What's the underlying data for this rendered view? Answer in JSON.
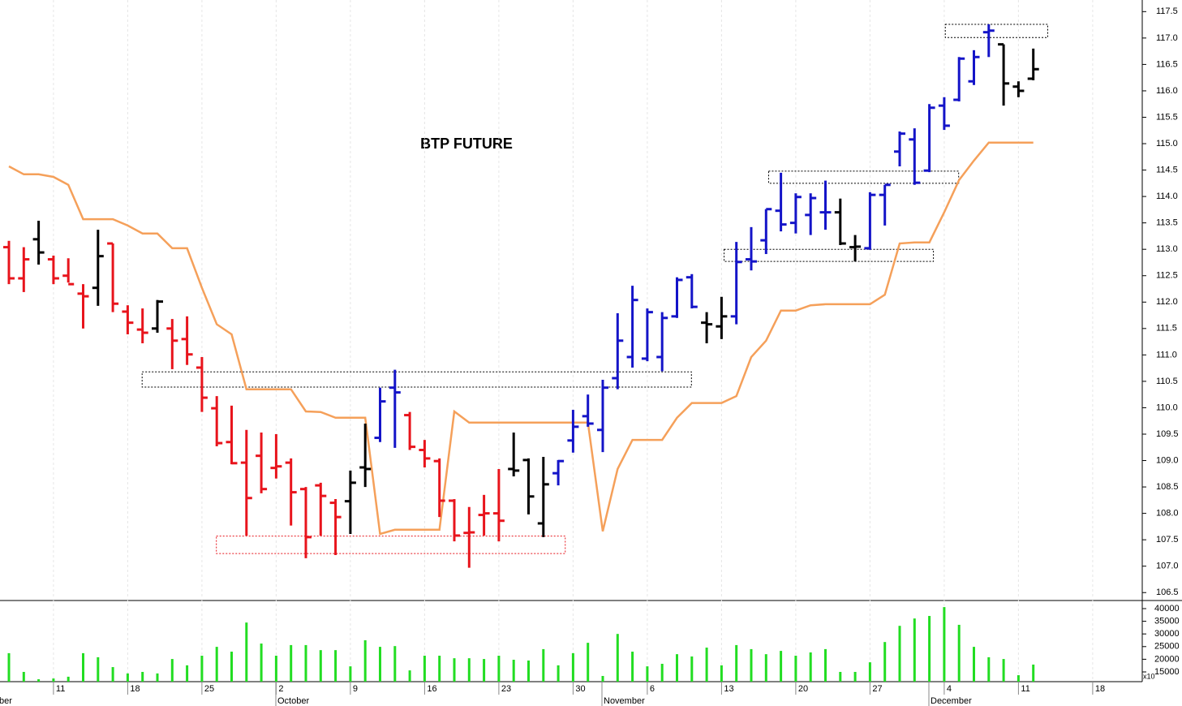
{
  "chart_data": {
    "type": "ohlc",
    "title": "BTP FUTURE",
    "categories": [
      "11",
      "18",
      "25",
      "2",
      "9",
      "16",
      "23",
      "30",
      "6",
      "13",
      "20",
      "27",
      "4",
      "11",
      "18"
    ],
    "months": [
      "ber",
      "October",
      "November",
      "December"
    ],
    "ylim": [
      106.35,
      117.72
    ],
    "yticks": [
      {
        "value": 106.5,
        "label": "106.5"
      },
      {
        "value": 107,
        "label": "107.0"
      },
      107.5,
      {
        "value": 108,
        "label": "108.0"
      },
      108.5,
      {
        "value": 109,
        "label": "109.0"
      },
      109.5,
      {
        "value": 110,
        "label": "110.0"
      },
      110.5,
      {
        "value": 111,
        "label": "111.0"
      },
      111.5,
      {
        "value": 112,
        "label": "112.0"
      },
      112.5,
      {
        "value": 113,
        "label": "113.0"
      },
      113.5,
      {
        "value": 114,
        "label": "114.0"
      },
      114.5,
      {
        "value": 115,
        "label": "115.0"
      },
      115.5,
      {
        "value": 116,
        "label": "116.0"
      },
      116.5,
      {
        "value": 117,
        "label": "117.0"
      },
      117.5
    ],
    "open": [
      113.04,
      112.45,
      113.19,
      112.81,
      112.5,
      112.16,
      112.27,
      113.11,
      111.82,
      111.48,
      111.5,
      111.5,
      111.3,
      110.76,
      109.99,
      109.35,
      108.96,
      109.09,
      108.86,
      108.96,
      108.46,
      108.53,
      108.2,
      108.23,
      108.87,
      109.43,
      110.38,
      109.86,
      109.2,
      108.99,
      108.24,
      107.63,
      107.97,
      108.0,
      108.84,
      109.01,
      107.81,
      108.76,
      109.38,
      109.84,
      109.58,
      110.56,
      110.96,
      110.93,
      110.96,
      111.73,
      112.47,
      111.61,
      111.54,
      111.73,
      112.81,
      113.17,
      113.73,
      113.5,
      113.65,
      113.7,
      113.7,
      113.04,
      113.02,
      114.03,
      114.85,
      115.08,
      114.49,
      115.72,
      115.83,
      116.18,
      117.11,
      116.88,
      116.08,
      116.23
    ],
    "high": [
      113.16,
      113.04,
      113.54,
      112.88,
      112.83,
      112.34,
      113.37,
      113.11,
      111.94,
      111.88,
      112.04,
      111.68,
      111.73,
      110.96,
      110.22,
      110.04,
      109.58,
      109.53,
      109.5,
      109.04,
      108.5,
      108.58,
      108.27,
      108.81,
      109.7,
      110.38,
      110.72,
      109.92,
      109.39,
      109.04,
      108.27,
      108.12,
      108.35,
      108.84,
      109.53,
      109.04,
      109.07,
      109.01,
      109.96,
      110.25,
      110.53,
      111.79,
      112.31,
      111.88,
      111.81,
      112.47,
      112.53,
      111.81,
      112.1,
      113.14,
      113.42,
      113.76,
      114.45,
      114.06,
      114.06,
      114.3,
      113.96,
      113.27,
      114.08,
      114.22,
      115.23,
      115.29,
      115.75,
      115.88,
      116.64,
      116.77,
      117.26,
      116.88,
      116.18,
      116.8
    ],
    "low": [
      112.34,
      112.19,
      112.71,
      112.34,
      112.37,
      111.5,
      111.93,
      111.81,
      111.39,
      111.22,
      111.42,
      110.73,
      110.81,
      109.92,
      109.27,
      108.93,
      107.58,
      108.38,
      108.66,
      107.77,
      107.15,
      107.58,
      107.21,
      107.61,
      108.5,
      109.35,
      109.24,
      109.2,
      108.87,
      107.93,
      107.47,
      106.97,
      107.58,
      107.47,
      108.7,
      107.98,
      107.55,
      108.53,
      109.15,
      109.64,
      109.16,
      110.35,
      110.76,
      110.88,
      110.69,
      111.7,
      111.88,
      111.22,
      111.3,
      111.58,
      112.6,
      112.91,
      113.34,
      113.3,
      113.27,
      113.37,
      113.08,
      112.77,
      112.99,
      113.45,
      114.57,
      114.22,
      114.46,
      115.26,
      115.8,
      116.11,
      116.64,
      115.72,
      115.88,
      116.2
    ],
    "close": [
      112.45,
      112.81,
      112.94,
      112.45,
      112.34,
      112.11,
      112.87,
      111.97,
      111.61,
      111.42,
      112.01,
      111.27,
      111.01,
      110.19,
      109.33,
      108.95,
      108.29,
      108.46,
      108.89,
      108.4,
      107.55,
      108.33,
      107.93,
      108.58,
      108.84,
      110.12,
      110.29,
      109.26,
      109.04,
      108.24,
      107.58,
      107.64,
      108.0,
      107.86,
      108.81,
      108.32,
      108.55,
      108.99,
      109.64,
      109.7,
      110.38,
      111.27,
      112.04,
      111.81,
      111.7,
      112.42,
      111.91,
      111.58,
      111.73,
      112.76,
      112.77,
      113.76,
      113.47,
      113.99,
      113.97,
      113.7,
      113.11,
      113.05,
      114.03,
      114.22,
      115.19,
      114.26,
      115.68,
      115.34,
      116.61,
      116.64,
      117.14,
      116.14,
      116.0,
      116.41
    ],
    "bar_colors": [
      "#e8141c",
      "#e8141c",
      "#000000",
      "#e8141c",
      "#e8141c",
      "#e8141c",
      "#000000",
      "#e8141c",
      "#e8141c",
      "#e8141c",
      "#000000",
      "#e8141c",
      "#e8141c",
      "#e8141c",
      "#e8141c",
      "#e8141c",
      "#e8141c",
      "#e8141c",
      "#e8141c",
      "#e8141c",
      "#e8141c",
      "#e8141c",
      "#e8141c",
      "#000000",
      "#000000",
      "#1414c8",
      "#1414c8",
      "#e8141c",
      "#e8141c",
      "#e8141c",
      "#e8141c",
      "#e8141c",
      "#e8141c",
      "#e8141c",
      "#000000",
      "#000000",
      "#000000",
      "#1414c8",
      "#1414c8",
      "#1414c8",
      "#1414c8",
      "#1414c8",
      "#1414c8",
      "#1414c8",
      "#1414c8",
      "#1414c8",
      "#1414c8",
      "#000000",
      "#000000",
      "#1414c8",
      "#1414c8",
      "#1414c8",
      "#1414c8",
      "#1414c8",
      "#1414c8",
      "#1414c8",
      "#000000",
      "#000000",
      "#1414c8",
      "#1414c8",
      "#1414c8",
      "#1414c8",
      "#1414c8",
      "#1414c8",
      "#1414c8",
      "#1414c8",
      "#1414c8",
      "#000000",
      "#000000",
      "#000000"
    ],
    "line": {
      "color": "#f5a05a",
      "values": [
        114.57,
        114.42,
        114.42,
        114.37,
        114.22,
        113.57,
        113.57,
        113.57,
        113.45,
        113.3,
        113.3,
        113.02,
        113.02,
        112.27,
        111.58,
        111.39,
        110.35,
        110.35,
        110.35,
        110.35,
        109.93,
        109.92,
        109.81,
        109.81,
        109.81,
        107.61,
        107.69,
        107.69,
        107.69,
        107.69,
        109.93,
        109.72,
        109.72,
        109.72,
        109.72,
        109.72,
        109.72,
        109.72,
        109.72,
        109.72,
        107.66,
        108.84,
        109.39,
        109.39,
        109.39,
        109.81,
        110.09,
        110.09,
        110.09,
        110.22,
        110.96,
        111.27,
        111.84,
        111.84,
        111.94,
        111.96,
        111.96,
        111.96,
        111.96,
        112.14,
        113.11,
        113.13,
        113.13,
        113.7,
        114.31,
        114.68,
        115.02,
        115.02,
        115.02,
        115.02
      ]
    },
    "zones": [
      {
        "low": 110.39,
        "high": 110.68,
        "color": "#000000"
      },
      {
        "low": 107.24,
        "high": 107.57,
        "color": "#e8141c"
      },
      {
        "low": 112.77,
        "high": 113.0,
        "color": "#000000"
      },
      {
        "low": 114.25,
        "high": 114.48,
        "color": "#000000"
      },
      {
        "low": 117.01,
        "high": 117.26,
        "color": "#000000"
      }
    ],
    "volume": {
      "color": "#22dd22",
      "values": [
        22400,
        15000,
        12100,
        12400,
        13100,
        22400,
        20800,
        16900,
        14400,
        15000,
        14400,
        20100,
        17600,
        21400,
        24900,
        23000,
        34500,
        26200,
        21400,
        25600,
        25600,
        23600,
        23600,
        17200,
        27500,
        24900,
        25200,
        15600,
        21400,
        21400,
        20400,
        20400,
        20100,
        21400,
        19800,
        19500,
        24000,
        17600,
        22400,
        26500,
        13400,
        30000,
        23000,
        17200,
        18200,
        22000,
        21100,
        24600,
        17600,
        25600,
        24000,
        22000,
        23300,
        21400,
        22700,
        24000,
        15000,
        15000,
        18800,
        26800,
        33200,
        36100,
        37100,
        40600,
        33600,
        24900,
        20800,
        20100,
        13700,
        17900
      ]
    },
    "vol_ylim": [
      11150,
      43200
    ],
    "vol_yticks": [
      15000,
      20000,
      25000,
      30000,
      35000,
      40000
    ],
    "vol_unit": "x10"
  }
}
